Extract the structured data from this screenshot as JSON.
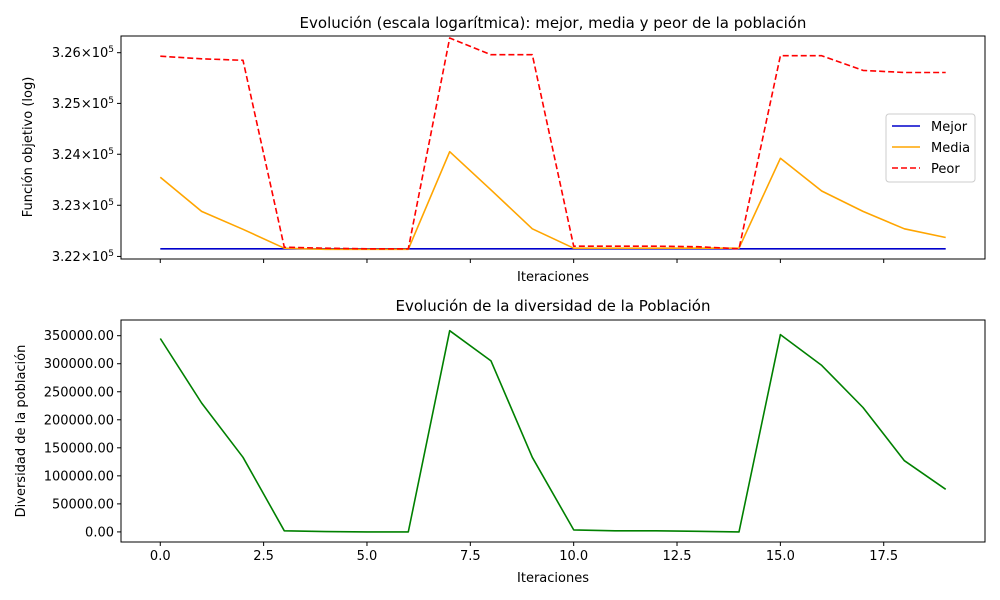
{
  "chart_data": [
    {
      "type": "line",
      "title": "Evolución (escala logarítmica): mejor, media y peor de la población",
      "xlabel": "Iteraciones",
      "ylabel": "Función objetivo (log)",
      "yscale": "log",
      "x": [
        0,
        1,
        2,
        3,
        4,
        5,
        6,
        7,
        8,
        9,
        10,
        11,
        12,
        13,
        14,
        15,
        16,
        17,
        18,
        19
      ],
      "xlim": [
        -0.95,
        19.95
      ],
      "ylim": [
        321950,
        326330
      ],
      "ytick_values": [
        322000,
        323000,
        324000,
        325000,
        326000
      ],
      "ytick_labels": [
        {
          "base": "3.22",
          "sup": "5"
        },
        {
          "base": "3.23",
          "sup": "5"
        },
        {
          "base": "3.24",
          "sup": "5"
        },
        {
          "base": "3.25",
          "sup": "5"
        },
        {
          "base": "3.26",
          "sup": "5"
        }
      ],
      "times_sign": "×10",
      "xticks_labeled": false,
      "xtick_values": [
        0,
        2.5,
        5,
        7.5,
        10,
        12.5,
        15,
        17.5
      ],
      "series": [
        {
          "name": "Mejor",
          "color": "#0000cc",
          "dash": "solid",
          "values": [
            322150,
            322150,
            322150,
            322150,
            322150,
            322150,
            322150,
            322150,
            322150,
            322150,
            322150,
            322150,
            322150,
            322150,
            322150,
            322150,
            322150,
            322150,
            322150,
            322150
          ]
        },
        {
          "name": "Media",
          "color": "#ffa500",
          "dash": "solid",
          "values": [
            323550,
            322880,
            322530,
            322160,
            322140,
            322140,
            322140,
            324050,
            323300,
            322540,
            322160,
            322160,
            322160,
            322160,
            322160,
            323920,
            323280,
            322880,
            322540,
            322370
          ]
        },
        {
          "name": "Peor",
          "color": "#ff0000",
          "dash": "dashed",
          "values": [
            325930,
            325880,
            325850,
            322180,
            322160,
            322150,
            322150,
            326290,
            325960,
            325960,
            322200,
            322200,
            322200,
            322190,
            322150,
            325940,
            325940,
            325650,
            325610,
            325610
          ]
        }
      ],
      "legend": "center-right",
      "grid": false
    },
    {
      "type": "line",
      "title": "Evolución de la diversidad de la Población",
      "xlabel": "Iteraciones",
      "ylabel": "Diversidad de la población",
      "x": [
        0,
        1,
        2,
        3,
        4,
        5,
        6,
        7,
        8,
        9,
        10,
        11,
        12,
        13,
        14,
        15,
        16,
        17,
        18,
        19
      ],
      "xlim": [
        -0.95,
        19.95
      ],
      "ylim": [
        -18000,
        378000
      ],
      "xtick_values": [
        0,
        2.5,
        5,
        7.5,
        10,
        12.5,
        15,
        17.5
      ],
      "xtick_labels": [
        "0.0",
        "2.5",
        "5.0",
        "7.5",
        "10.0",
        "12.5",
        "15.0",
        "17.5"
      ],
      "ytick_values": [
        0,
        50000,
        100000,
        150000,
        200000,
        250000,
        300000,
        350000
      ],
      "ytick_labels": [
        "0.00",
        "50000.00",
        "100000.00",
        "150000.00",
        "200000.00",
        "250000.00",
        "300000.00",
        "350000.00"
      ],
      "series": [
        {
          "color": "#008000",
          "dash": "solid",
          "values": [
            345000,
            230000,
            133000,
            2000,
            500,
            0,
            0,
            359000,
            305000,
            133000,
            3500,
            2000,
            2000,
            1000,
            0,
            352000,
            297000,
            222000,
            127000,
            76000
          ]
        }
      ],
      "grid": false
    }
  ]
}
